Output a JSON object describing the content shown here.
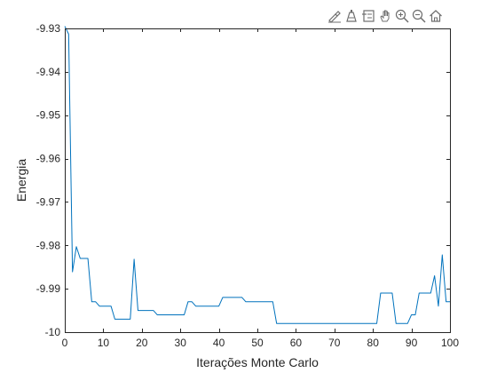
{
  "toolbar": {
    "tools": [
      {
        "name": "brush-icon"
      },
      {
        "name": "data-tips-icon"
      },
      {
        "name": "legend-icon"
      },
      {
        "name": "pan-hand-icon"
      },
      {
        "name": "zoom-in-icon"
      },
      {
        "name": "zoom-out-icon"
      },
      {
        "name": "home-icon"
      }
    ]
  },
  "colors": {
    "line": "#0072bd",
    "axis": "#262626",
    "icon": "#6e6e6e"
  },
  "chart_data": {
    "type": "line",
    "xlabel": "Iterações Monte Carlo",
    "ylabel": "Energia",
    "xlim": [
      0,
      100
    ],
    "ylim": [
      -10,
      -9.93
    ],
    "grid": false,
    "xticks": [
      0,
      10,
      20,
      30,
      40,
      50,
      60,
      70,
      80,
      90,
      100
    ],
    "xtick_labels": [
      "0",
      "10",
      "20",
      "30",
      "40",
      "50",
      "60",
      "70",
      "80",
      "90",
      "100"
    ],
    "yticks": [
      -10,
      -9.99,
      -9.98,
      -9.97,
      -9.96,
      -9.95,
      -9.94,
      -9.93
    ],
    "ytick_labels": [
      "-10",
      "-9.99",
      "-9.98",
      "-9.97",
      "-9.96",
      "-9.95",
      "-9.94",
      "-9.93"
    ],
    "series": [
      {
        "x": [
          0,
          1,
          2,
          3,
          4,
          5,
          6,
          7,
          8,
          9,
          10,
          11,
          12,
          13,
          14,
          15,
          16,
          17,
          18,
          19,
          20,
          21,
          22,
          23,
          24,
          25,
          26,
          27,
          28,
          29,
          30,
          31,
          32,
          33,
          34,
          35,
          36,
          37,
          38,
          39,
          40,
          41,
          42,
          43,
          44,
          45,
          46,
          47,
          48,
          49,
          50,
          51,
          52,
          53,
          54,
          55,
          56,
          57,
          58,
          59,
          60,
          61,
          62,
          63,
          64,
          65,
          66,
          67,
          68,
          69,
          70,
          71,
          72,
          73,
          74,
          75,
          76,
          77,
          78,
          79,
          80,
          81,
          82,
          83,
          84,
          85,
          86,
          87,
          88,
          89,
          90,
          91,
          92,
          93,
          94,
          95,
          96,
          97,
          98,
          99,
          100
        ],
        "y": [
          -9.9295,
          -9.9313,
          -9.9861,
          -9.9803,
          -9.983,
          -9.983,
          -9.983,
          -9.993,
          -9.993,
          -9.994,
          -9.994,
          -9.994,
          -9.994,
          -9.997,
          -9.997,
          -9.997,
          -9.997,
          -9.997,
          -9.9832,
          -9.995,
          -9.995,
          -9.995,
          -9.995,
          -9.995,
          -9.996,
          -9.996,
          -9.996,
          -9.996,
          -9.996,
          -9.996,
          -9.996,
          -9.996,
          -9.993,
          -9.993,
          -9.994,
          -9.994,
          -9.994,
          -9.994,
          -9.994,
          -9.994,
          -9.994,
          -9.992,
          -9.992,
          -9.992,
          -9.992,
          -9.992,
          -9.992,
          -9.993,
          -9.993,
          -9.993,
          -9.993,
          -9.993,
          -9.993,
          -9.993,
          -9.993,
          -9.998,
          -9.998,
          -9.998,
          -9.998,
          -9.998,
          -9.998,
          -9.998,
          -9.998,
          -9.998,
          -9.998,
          -9.998,
          -9.998,
          -9.998,
          -9.998,
          -9.998,
          -9.998,
          -9.998,
          -9.998,
          -9.998,
          -9.998,
          -9.998,
          -9.998,
          -9.998,
          -9.998,
          -9.998,
          -9.998,
          -9.998,
          -9.991,
          -9.991,
          -9.991,
          -9.991,
          -9.998,
          -9.998,
          -9.998,
          -9.998,
          -9.996,
          -9.996,
          -9.991,
          -9.991,
          -9.991,
          -9.991,
          -9.987,
          -9.994,
          -9.9822,
          -9.993,
          -9.993
        ]
      }
    ]
  }
}
